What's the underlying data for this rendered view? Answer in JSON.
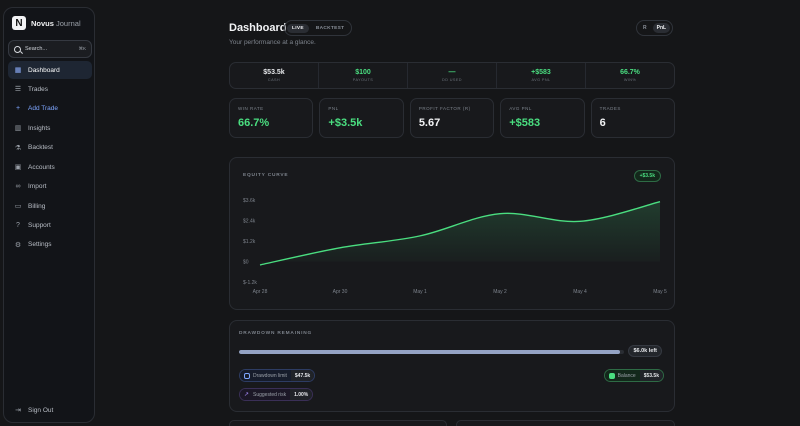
{
  "brand": {
    "name": "Novus",
    "suffix": "Journal",
    "logo_letter": "N"
  },
  "search": {
    "placeholder": "Search...",
    "shortcut": "⌘K"
  },
  "nav": [
    {
      "label": "Dashboard",
      "icon": "grid-icon",
      "active": true
    },
    {
      "label": "Trades",
      "icon": "list-icon"
    },
    {
      "label": "Add Trade",
      "icon": "plus-icon",
      "accent": true
    },
    {
      "label": "Insights",
      "icon": "bar-chart-icon"
    },
    {
      "label": "Backtest",
      "icon": "flask-icon"
    },
    {
      "label": "Accounts",
      "icon": "briefcase-icon"
    },
    {
      "label": "Import",
      "icon": "link-icon"
    },
    {
      "label": "Billing",
      "icon": "card-icon"
    },
    {
      "label": "Support",
      "icon": "help-icon"
    },
    {
      "label": "Settings",
      "icon": "gear-icon"
    }
  ],
  "sign_out": "Sign Out",
  "header": {
    "title": "Dashboard",
    "subtitle": "Your performance at a glance.",
    "modes": [
      "LIVE",
      "BACKTEST"
    ],
    "active_mode": "LIVE",
    "views": [
      "R",
      "PnL"
    ],
    "active_view": "PnL"
  },
  "summary": [
    {
      "value": "$53.5k",
      "label": "CASH",
      "color": "#e6e8eb"
    },
    {
      "value": "$100",
      "label": "PAYOUTS",
      "color": "#4ade80"
    },
    {
      "value": "—",
      "label": "DD USED",
      "color": "#4ade80"
    },
    {
      "value": "+$583",
      "label": "AVG PNL",
      "color": "#4ade80"
    },
    {
      "value": "66.7%",
      "label": "WIN%",
      "color": "#4ade80"
    }
  ],
  "kpis": [
    {
      "label": "WIN RATE",
      "value": "66.7%",
      "color": "#4ade80"
    },
    {
      "label": "PNL",
      "value": "+$3.5k",
      "color": "#4ade80"
    },
    {
      "label": "PROFIT FACTOR (R)",
      "value": "5.67",
      "color": "#f2f3f5"
    },
    {
      "label": "AVG PNL",
      "value": "+$583",
      "color": "#4ade80"
    },
    {
      "label": "TRADES",
      "value": "6",
      "color": "#f2f3f5"
    }
  ],
  "equity": {
    "title": "EQUITY CURVE",
    "badge": "+$3.5k"
  },
  "chart_data": {
    "type": "area",
    "title": "EQUITY CURVE",
    "y_tick_labels": [
      "$3.6k",
      "$2.4k",
      "$1.2k",
      "$0",
      "$-1.2k"
    ],
    "y_ticks": [
      3600,
      2400,
      1200,
      0,
      -1200
    ],
    "ylim": [
      -1200,
      3600
    ],
    "x_tick_labels": [
      "Apr 28",
      "Apr 30",
      "May 1",
      "May 2",
      "May 4",
      "May 5"
    ],
    "series": [
      {
        "values": [
          -200,
          800,
          1500,
          2800,
          2350,
          3500
        ]
      }
    ],
    "line_color": "#4ade80",
    "grid": false
  },
  "drawdown": {
    "title": "DRAWDOWN REMAINING",
    "remaining_fraction": 0.99,
    "left_label": "$6.0k left",
    "limit_label": "Drawdown limit",
    "limit_value": "$47.5k",
    "risk_label": "Suggested risk",
    "risk_value": "1.00%",
    "balance_label": "Balance",
    "balance_value": "$53.5k"
  }
}
